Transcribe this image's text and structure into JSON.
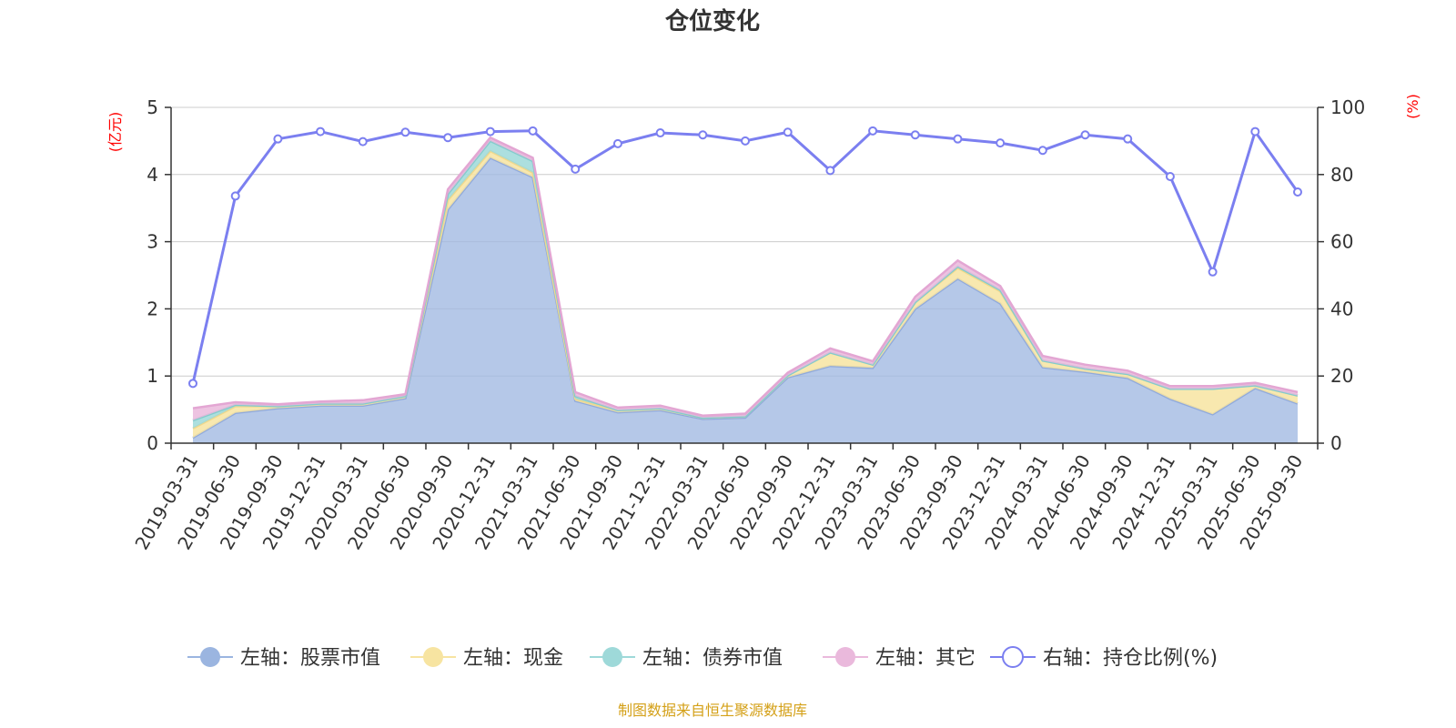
{
  "chart_data": {
    "type": "area",
    "title": "仓位变化",
    "left_axis": {
      "unit": "(亿元)",
      "ylim": [
        0,
        5
      ],
      "ticks": [
        0,
        1,
        2,
        3,
        4,
        5
      ]
    },
    "right_axis": {
      "unit": "(%)",
      "ylim": [
        0,
        100
      ],
      "ticks": [
        0,
        20,
        40,
        60,
        80,
        100
      ]
    },
    "categories": [
      "2019-03-31",
      "2019-06-30",
      "2019-09-30",
      "2019-12-31",
      "2020-03-31",
      "2020-06-30",
      "2020-09-30",
      "2020-12-31",
      "2021-03-31",
      "2021-06-30",
      "2021-09-30",
      "2021-12-31",
      "2022-03-31",
      "2022-06-30",
      "2022-09-30",
      "2022-12-31",
      "2023-03-31",
      "2023-06-30",
      "2023-09-30",
      "2023-12-31",
      "2024-03-31",
      "2024-06-30",
      "2024-09-30",
      "2024-12-31",
      "2025-03-31",
      "2025-06-30",
      "2025-09-30"
    ],
    "series": [
      {
        "name": "左轴：股票市值",
        "axis": "left",
        "color": "#a0b9e2",
        "values": [
          0.08,
          0.45,
          0.52,
          0.56,
          0.56,
          0.67,
          3.48,
          4.25,
          3.96,
          0.63,
          0.46,
          0.49,
          0.36,
          0.38,
          0.98,
          1.15,
          1.12,
          2.0,
          2.45,
          2.08,
          1.13,
          1.06,
          0.97,
          0.66,
          0.43,
          0.82,
          0.59
        ]
      },
      {
        "name": "左轴：现金",
        "axis": "left",
        "color": "#f7e4a1",
        "values": [
          0.14,
          0.1,
          0.03,
          0.03,
          0.03,
          0.03,
          0.14,
          0.1,
          0.07,
          0.03,
          0.03,
          0.03,
          0.02,
          0.02,
          0.03,
          0.2,
          0.05,
          0.1,
          0.16,
          0.18,
          0.1,
          0.05,
          0.06,
          0.15,
          0.38,
          0.04,
          0.12
        ]
      },
      {
        "name": "左轴：债券市值",
        "axis": "left",
        "color": "#9ed9d9",
        "values": [
          0.12,
          0.02,
          0.0,
          0.0,
          0.0,
          0.0,
          0.09,
          0.15,
          0.17,
          0.04,
          0.0,
          0.0,
          0.0,
          0.0,
          0.0,
          0.0,
          0.0,
          0.0,
          0.02,
          0.02,
          0.0,
          0.0,
          0.0,
          0.0,
          0.0,
          0.0,
          0.0
        ]
      },
      {
        "name": "左轴：其它",
        "axis": "left",
        "color": "#eab9dc",
        "values": [
          0.18,
          0.04,
          0.03,
          0.03,
          0.05,
          0.03,
          0.07,
          0.05,
          0.05,
          0.06,
          0.04,
          0.04,
          0.03,
          0.04,
          0.04,
          0.06,
          0.05,
          0.08,
          0.09,
          0.06,
          0.07,
          0.06,
          0.05,
          0.04,
          0.04,
          0.04,
          0.05
        ]
      },
      {
        "name": "右轴：持仓比例(%)",
        "axis": "right",
        "color": "#7b7ff0",
        "type": "line",
        "values": [
          17.8,
          73.6,
          90.6,
          92.8,
          89.8,
          92.6,
          91.0,
          92.8,
          93.0,
          81.6,
          89.2,
          92.4,
          91.8,
          90.0,
          92.6,
          81.2,
          93.0,
          91.8,
          90.6,
          89.4,
          87.2,
          91.8,
          90.6,
          79.4,
          51.0,
          92.8,
          74.8
        ]
      }
    ],
    "legend_position": "bottom",
    "grid": true
  },
  "footer": {
    "source": "制图数据来自恒生聚源数据库"
  }
}
